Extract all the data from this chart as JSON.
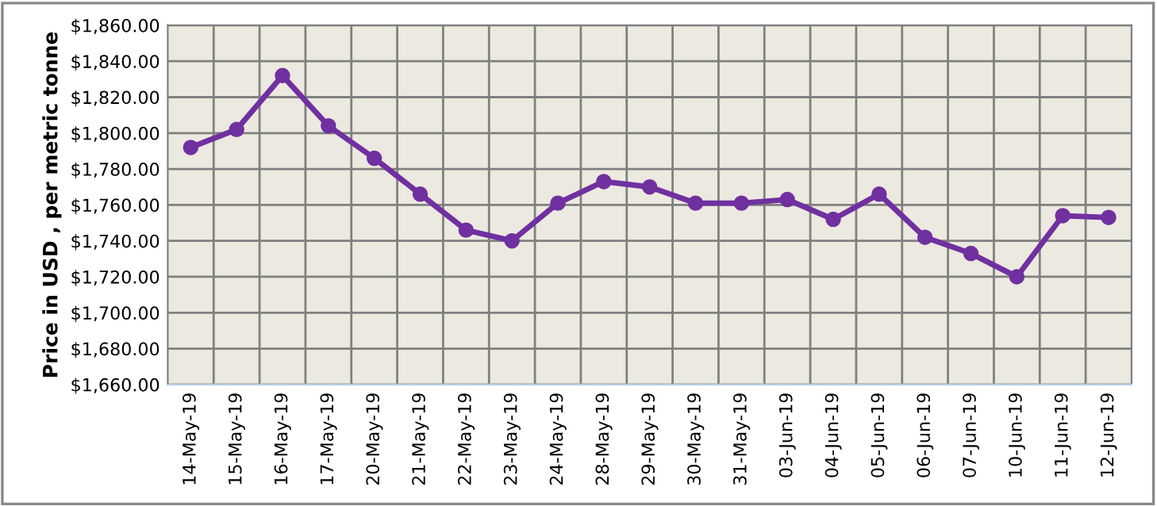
{
  "chart_data": {
    "type": "line",
    "ylabel": "Price in USD , per metric tonne",
    "categories": [
      "14-May-19",
      "15-May-19",
      "16-May-19",
      "17-May-19",
      "20-May-19",
      "21-May-19",
      "22-May-19",
      "23-May-19",
      "24-May-19",
      "28-May-19",
      "29-May-19",
      "30-May-19",
      "31-May-19",
      "03-Jun-19",
      "04-Jun-19",
      "05-Jun-19",
      "06-Jun-19",
      "07-Jun-19",
      "10-Jun-19",
      "11-Jun-19",
      "12-Jun-19"
    ],
    "series": [
      {
        "color": "#7030a0",
        "values": [
          1792,
          1802,
          1832,
          1804,
          1786,
          1766,
          1746,
          1740,
          1761,
          1773,
          1770,
          1761,
          1761,
          1763,
          1752,
          1766,
          1742,
          1733,
          1720,
          1754,
          1753
        ]
      }
    ],
    "ylim": [
      1660,
      1860
    ],
    "yticks": [
      {
        "value": 1660,
        "label": "$1,660.00"
      },
      {
        "value": 1680,
        "label": "$1,680.00"
      },
      {
        "value": 1700,
        "label": "$1,700.00"
      },
      {
        "value": 1720,
        "label": "$1,720.00"
      },
      {
        "value": 1740,
        "label": "$1,740.00"
      },
      {
        "value": 1760,
        "label": "$1,760.00"
      },
      {
        "value": 1780,
        "label": "$1,780.00"
      },
      {
        "value": 1800,
        "label": "$1,800.00"
      },
      {
        "value": 1820,
        "label": "$1,820.00"
      },
      {
        "value": 1840,
        "label": "$1,840.00"
      },
      {
        "value": 1860,
        "label": "$1,860.00"
      }
    ],
    "grid": true,
    "marker": "circle",
    "line_style": "solid",
    "legend": false
  }
}
